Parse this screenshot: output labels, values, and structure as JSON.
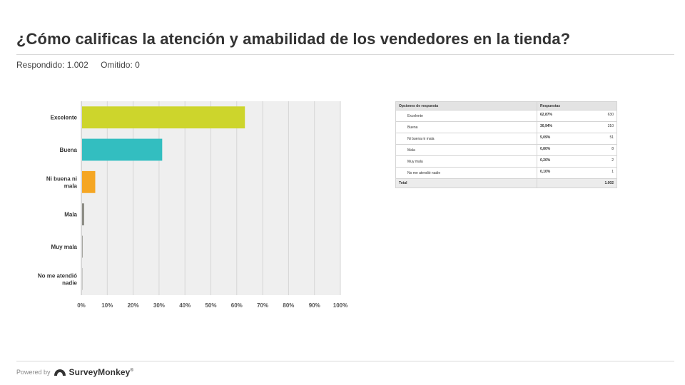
{
  "header": {
    "title": "¿Cómo calificas la atención y amabilidad de los vendedores en la tienda?",
    "answered": "Respondido: 1.002",
    "skipped": "Omitido: 0"
  },
  "chart_data": {
    "type": "bar",
    "orientation": "horizontal",
    "categories": [
      "Excelente",
      "Buena",
      "Ni buena ni mala",
      "Mala",
      "Muy mala",
      "No me atendió nadie"
    ],
    "values": [
      62.87,
      30.94,
      5.09,
      0.8,
      0.2,
      0.1
    ],
    "colors": [
      "#cdd52c",
      "#33bec0",
      "#f5a623",
      "#8b8b83",
      "#8b8b83",
      "#8b8b83"
    ],
    "xlim": [
      0,
      100
    ],
    "xticks": [
      "0%",
      "10%",
      "20%",
      "30%",
      "40%",
      "50%",
      "60%",
      "70%",
      "80%",
      "90%",
      "100%"
    ],
    "grid": true,
    "background": "#efefef"
  },
  "table": {
    "headers": [
      "Opciones de respuesta",
      "Respuestas"
    ],
    "rows": [
      {
        "option": "Excelente",
        "percent": "62,87%",
        "count": "630"
      },
      {
        "option": "Buena",
        "percent": "30,94%",
        "count": "310"
      },
      {
        "option": "Ni buena ni mala",
        "percent": "5,09%",
        "count": "51"
      },
      {
        "option": "Mala",
        "percent": "0,80%",
        "count": "8"
      },
      {
        "option": "Muy mala",
        "percent": "0,20%",
        "count": "2"
      },
      {
        "option": "No me atendió nadie",
        "percent": "0,10%",
        "count": "1"
      }
    ],
    "total_label": "Total",
    "total_value": "1.002"
  },
  "footer": {
    "powered_by": "Powered by",
    "brand": "SurveyMonkey",
    "trademark": "®",
    "brand_color": "#333333"
  }
}
